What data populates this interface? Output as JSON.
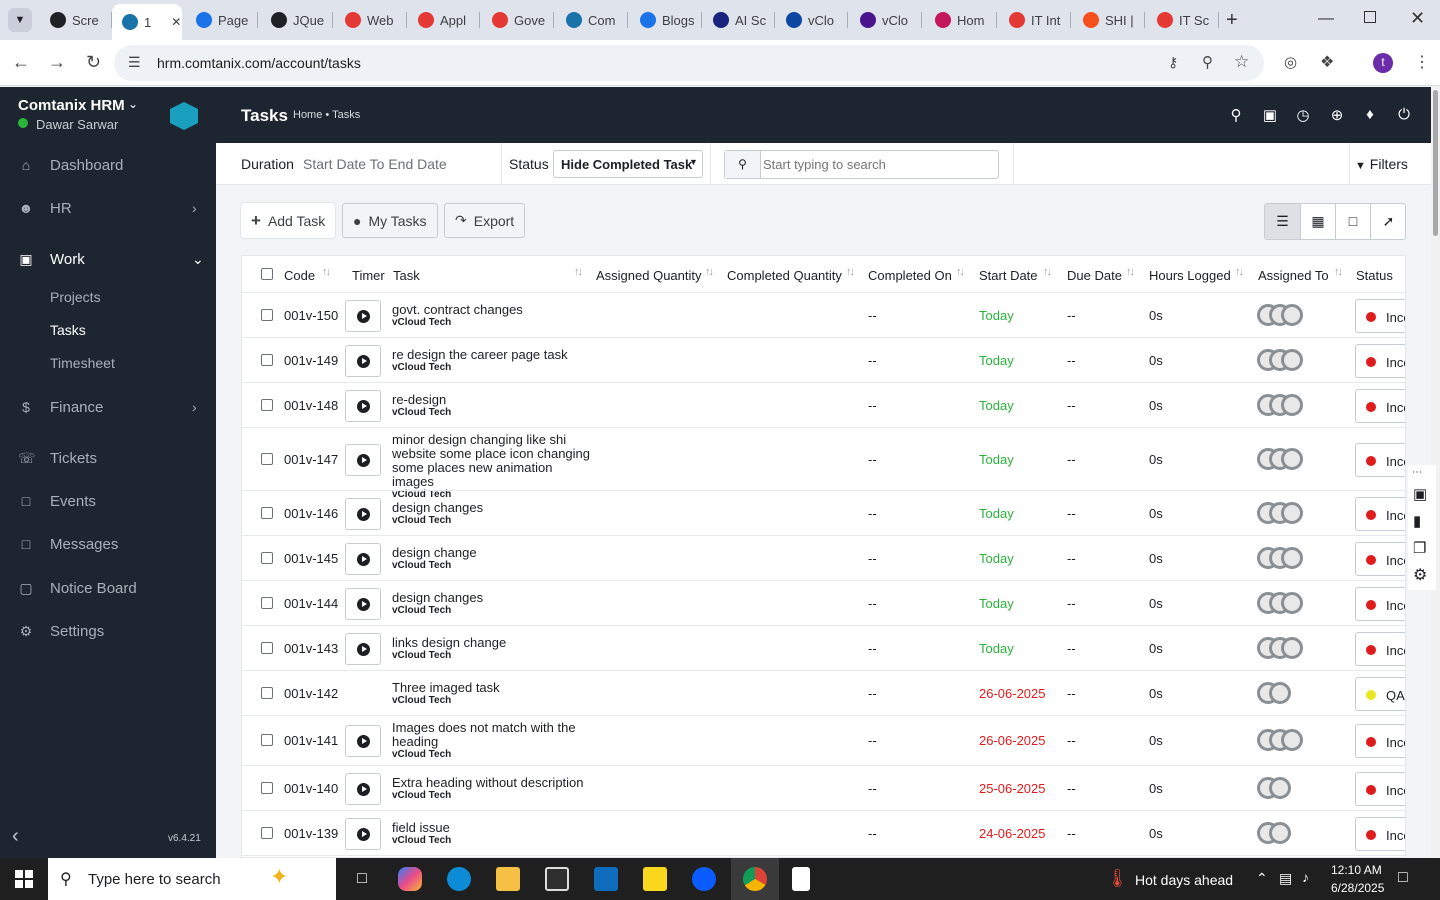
{
  "browser": {
    "tabs": [
      {
        "label": "Scre",
        "color": "#202124"
      },
      {
        "label": "1",
        "color": "#1a73a8"
      },
      {
        "label": "Page",
        "color": "#1a73e8"
      },
      {
        "label": "JQue",
        "color": "#202124"
      },
      {
        "label": "Web",
        "color": "#e53935"
      },
      {
        "label": "Appl",
        "color": "#e53935"
      },
      {
        "label": "Gove",
        "color": "#e53935"
      },
      {
        "label": "Com",
        "color": "#1a73a8"
      },
      {
        "label": "Blogs",
        "color": "#1a73e8"
      },
      {
        "label": "AI Sc",
        "color": "#1a237e"
      },
      {
        "label": "vClo",
        "color": "#0d47a1"
      },
      {
        "label": "vClo",
        "color": "#4a148c"
      },
      {
        "label": "Hom",
        "color": "#c2185b"
      },
      {
        "label": "IT Int",
        "color": "#e53935"
      },
      {
        "label": "SHI |",
        "color": "#f4511e"
      },
      {
        "label": "IT Sc",
        "color": "#e53935"
      }
    ],
    "url": "hrm.comtanix.com/account/tasks",
    "profile_initial": "t"
  },
  "sidebar": {
    "company": "Comtanix HRM",
    "user": "Dawar Sarwar",
    "items": [
      {
        "label": "Dashboard",
        "icon": "home-icon"
      },
      {
        "label": "HR",
        "icon": "users-icon"
      },
      {
        "label": "Work",
        "icon": "briefcase-icon"
      },
      {
        "label": "Finance",
        "icon": "dollar-icon"
      },
      {
        "label": "Tickets",
        "icon": "headset-icon"
      },
      {
        "label": "Events",
        "icon": "calendar-icon"
      },
      {
        "label": "Messages",
        "icon": "message-icon"
      },
      {
        "label": "Notice Board",
        "icon": "clipboard-icon"
      },
      {
        "label": "Settings",
        "icon": "gear-icon"
      }
    ],
    "work_sub": [
      "Projects",
      "Tasks",
      "Timesheet"
    ],
    "version": "v6.4.21"
  },
  "header": {
    "title": "Tasks",
    "breadcrumb": "Home • Tasks"
  },
  "filters": {
    "duration_label": "Duration",
    "duration_value": "Start Date To End Date",
    "status_label": "Status",
    "status_value": "Hide Completed Task",
    "search_placeholder": "Start typing to search",
    "filters_label": "Filters"
  },
  "actions": {
    "add": "Add Task",
    "my": "My Tasks",
    "export": "Export"
  },
  "table": {
    "headers": [
      "Code",
      "Timer",
      "Task",
      "Assigned Quantity",
      "Completed Quantity",
      "Completed On",
      "Start Date",
      "Due Date",
      "Hours Logged",
      "Assigned To",
      "Status"
    ],
    "rows": [
      {
        "code": "001v-150",
        "task": [
          "govt. contract changes"
        ],
        "project": "vCloud Tech",
        "completed_on": "--",
        "start": "Today",
        "due": "--",
        "hours": "0s",
        "avatars": 3,
        "status": "Inco",
        "status_color": "#e01b1b",
        "timer": true
      },
      {
        "code": "001v-149",
        "task": [
          "re design the career page task"
        ],
        "project": "vCloud Tech",
        "completed_on": "--",
        "start": "Today",
        "due": "--",
        "hours": "0s",
        "avatars": 3,
        "status": "Inco",
        "status_color": "#e01b1b",
        "timer": true
      },
      {
        "code": "001v-148",
        "task": [
          "re-design"
        ],
        "project": "vCloud Tech",
        "completed_on": "--",
        "start": "Today",
        "due": "--",
        "hours": "0s",
        "avatars": 3,
        "status": "Inco",
        "status_color": "#e01b1b",
        "timer": true
      },
      {
        "code": "001v-147",
        "task": [
          "minor design changing like shi",
          "website some place icon changing",
          "some places new animation images"
        ],
        "project": "vCloud Tech",
        "completed_on": "--",
        "start": "Today",
        "due": "--",
        "hours": "0s",
        "avatars": 3,
        "status": "Inco",
        "status_color": "#e01b1b",
        "timer": true
      },
      {
        "code": "001v-146",
        "task": [
          "design changes"
        ],
        "project": "vCloud Tech",
        "completed_on": "--",
        "start": "Today",
        "due": "--",
        "hours": "0s",
        "avatars": 3,
        "status": "Inco",
        "status_color": "#e01b1b",
        "timer": true
      },
      {
        "code": "001v-145",
        "task": [
          "design change"
        ],
        "project": "vCloud Tech",
        "completed_on": "--",
        "start": "Today",
        "due": "--",
        "hours": "0s",
        "avatars": 3,
        "status": "Inco",
        "status_color": "#e01b1b",
        "timer": true
      },
      {
        "code": "001v-144",
        "task": [
          "design changes"
        ],
        "project": "vCloud Tech",
        "completed_on": "--",
        "start": "Today",
        "due": "--",
        "hours": "0s",
        "avatars": 3,
        "status": "Inco",
        "status_color": "#e01b1b",
        "timer": true
      },
      {
        "code": "001v-143",
        "task": [
          "links design change"
        ],
        "project": "vCloud Tech",
        "completed_on": "--",
        "start": "Today",
        "due": "--",
        "hours": "0s",
        "avatars": 3,
        "status": "Inco",
        "status_color": "#e01b1b",
        "timer": true
      },
      {
        "code": "001v-142",
        "task": [
          "Three imaged task"
        ],
        "project": "vCloud Tech",
        "completed_on": "--",
        "start": "26-06-2025",
        "due": "--",
        "hours": "0s",
        "avatars": 2,
        "status": "QA",
        "status_color": "#e6e621",
        "timer": false
      },
      {
        "code": "001v-141",
        "task": [
          "Images does not match with the",
          "heading"
        ],
        "project": "vCloud Tech",
        "completed_on": "--",
        "start": "26-06-2025",
        "due": "--",
        "hours": "0s",
        "avatars": 3,
        "status": "Inco",
        "status_color": "#e01b1b",
        "timer": true
      },
      {
        "code": "001v-140",
        "task": [
          "Extra heading without description"
        ],
        "project": "vCloud Tech",
        "completed_on": "--",
        "start": "25-06-2025",
        "due": "--",
        "hours": "0s",
        "avatars": 2,
        "status": "Inco",
        "status_color": "#e01b1b",
        "timer": true
      },
      {
        "code": "001v-139",
        "task": [
          "field issue"
        ],
        "project": "vCloud Tech",
        "completed_on": "--",
        "start": "24-06-2025",
        "due": "--",
        "hours": "0s",
        "avatars": 2,
        "status": "Inco",
        "status_color": "#e01b1b",
        "timer": true
      }
    ]
  },
  "taskbar": {
    "search_placeholder": "Type here to search",
    "weather": "Hot days ahead",
    "time": "12:10 AM",
    "date": "6/28/2025"
  },
  "colors": {
    "sidebar": "#1d2630",
    "today": "#2bb33b",
    "past_date": "#e01b1b",
    "accent": "#1b9fc0"
  }
}
